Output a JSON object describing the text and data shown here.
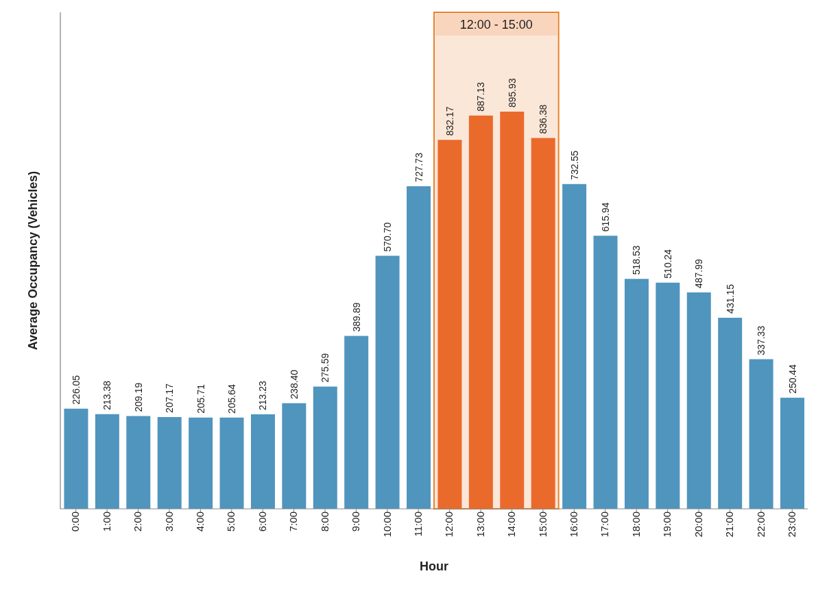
{
  "chart_data": {
    "type": "bar",
    "xlabel": "Hour",
    "ylabel": "Average Occupancy (Vehicles)",
    "categories": [
      "0:00",
      "1:00",
      "2:00",
      "3:00",
      "4:00",
      "5:00",
      "6:00",
      "7:00",
      "8:00",
      "9:00",
      "10:00",
      "11:00",
      "12:00",
      "13:00",
      "14:00",
      "15:00",
      "16:00",
      "17:00",
      "18:00",
      "19:00",
      "20:00",
      "21:00",
      "22:00",
      "23:00"
    ],
    "values": [
      226.05,
      213.38,
      209.19,
      207.17,
      205.71,
      205.64,
      213.23,
      238.4,
      275.59,
      389.89,
      570.7,
      727.73,
      832.17,
      887.13,
      895.93,
      836.38,
      732.55,
      615.94,
      518.53,
      510.24,
      487.99,
      431.15,
      337.33,
      250.44
    ],
    "value_labels": [
      "226.05",
      "213.38",
      "209.19",
      "207.17",
      "205.71",
      "205.64",
      "213.23",
      "238.40",
      "275.59",
      "389.89",
      "570.70",
      "727.73",
      "832.17",
      "887.13",
      "895.93",
      "836.38",
      "732.55",
      "615.94",
      "518.53",
      "510.24",
      "487.99",
      "431.15",
      "337.33",
      "250.44"
    ],
    "colors": [
      "#4f95be",
      "#4f95be",
      "#4f95be",
      "#4f95be",
      "#4f95be",
      "#4f95be",
      "#4f95be",
      "#4f95be",
      "#4f95be",
      "#4f95be",
      "#4f95be",
      "#4f95be",
      "#ea6a2c",
      "#ea6a2c",
      "#ea6a2c",
      "#ea6a2c",
      "#4f95be",
      "#4f95be",
      "#4f95be",
      "#4f95be",
      "#4f95be",
      "#4f95be",
      "#4f95be",
      "#4f95be"
    ],
    "bands": [
      {
        "axis": "x",
        "from": "12:00",
        "to": "15:00",
        "label": "12:00 - 15:00",
        "color": "#fbe4d4"
      }
    ],
    "tick_labels": "x"
  }
}
